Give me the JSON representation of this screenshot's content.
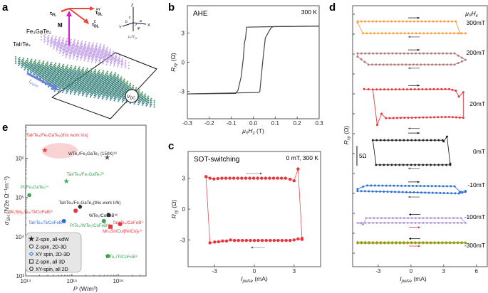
{
  "panel_labels": {
    "a": "a",
    "b": "b",
    "c": "c",
    "d": "d",
    "e": "e"
  },
  "panel_a": {
    "layer_top": "Fe₃GaTe₂",
    "layer_bottom": "TaIrTe₄",
    "magnetization": "M",
    "torque_fl": "τ",
    "torque_fl_sub": "FL",
    "torque_dl_xy": "τ",
    "torque_dl_xy_sub": "DL",
    "torque_dl_xy_sup": "XY",
    "torque_dl_z": "τ",
    "torque_dl_z_sub": "DL",
    "torque_dl_z_sup": "Z",
    "current": "I",
    "current_sub": "Pulse",
    "voltmeter": "V",
    "voltmeter_sub": "DC",
    "axes": {
      "z": "Z",
      "x": "X",
      "y": "Y",
      "a": "a",
      "b": "b",
      "c": "c",
      "phi": "φ",
      "field": "μ₀H",
      "field_sub": "xy"
    },
    "colors": {
      "top_layer": "#b48be0",
      "bottom_layer": "#3f8a5a",
      "torque": "#e8483a",
      "magnetization": "#d020c8",
      "current": "#6e80e8"
    }
  },
  "chart_data": [
    {
      "id": "b",
      "type": "line",
      "title": "AHE",
      "annotation": "300 K",
      "xlabel": "μ₀H",
      "xlabel_sub": "z",
      "xunit": " (T)",
      "ylabel": "R",
      "ylabel_sub": "xy",
      "yunit": " (Ω)",
      "xlim": [
        -0.3,
        0.3
      ],
      "ylim": [
        -5.8,
        5.8
      ],
      "xticks": [
        -0.3,
        -0.2,
        -0.1,
        0.0,
        0.1,
        0.2,
        0.3
      ],
      "xtick_labels": [
        "-0.3",
        "-0.2",
        "-0.1",
        "0.0",
        "0.1",
        "0.2",
        "0.3"
      ],
      "yticks": [
        -3,
        0,
        3
      ],
      "ytick_labels": [
        "-3",
        "0",
        "3"
      ],
      "color": "#444444",
      "series": [
        {
          "points": [
            [
              -0.3,
              -3.25
            ],
            [
              -0.08,
              -3.2
            ],
            [
              -0.07,
              -2.9
            ],
            [
              -0.055,
              -1.5
            ],
            [
              -0.045,
              0.5
            ],
            [
              -0.04,
              2.0
            ],
            [
              -0.035,
              2.5
            ],
            [
              -0.03,
              3.6
            ],
            [
              0.08,
              3.65
            ],
            [
              0.3,
              3.7
            ]
          ]
        },
        {
          "points": [
            [
              0.3,
              3.7
            ],
            [
              0.09,
              3.65
            ],
            [
              0.08,
              3.5
            ],
            [
              0.055,
              2.5
            ],
            [
              0.045,
              0.5
            ],
            [
              0.035,
              -1.8
            ],
            [
              0.03,
              -3.0
            ],
            [
              0.025,
              -3.1
            ],
            [
              -0.3,
              -3.25
            ]
          ]
        }
      ]
    },
    {
      "id": "c",
      "type": "line",
      "title": "SOT-switching",
      "annotation": "0 mT, 300 K",
      "xlabel": "I",
      "xlabel_sub": "pulse",
      "xunit": " (mA)",
      "ylabel": "R",
      "ylabel_sub": "xy",
      "yunit": " (Ω)",
      "xlim": [
        -5,
        5
      ],
      "ylim": [
        -5.6,
        5.6
      ],
      "xticks": [
        -3,
        0,
        3
      ],
      "xtick_labels": [
        "-3",
        "0",
        "3"
      ],
      "yticks": [
        -3,
        0,
        3
      ],
      "ytick_labels": [
        "-3",
        "0",
        "3"
      ],
      "color": "#e8343a",
      "series": [
        {
          "direction": "forward",
          "points": [
            [
              -3.65,
              3.15
            ],
            [
              -3.35,
              3.0
            ],
            [
              -3.05,
              2.93
            ],
            [
              -2.75,
              2.97
            ],
            [
              -2.45,
              3.0
            ],
            [
              -2.15,
              3.0
            ],
            [
              -1.85,
              3.0
            ],
            [
              -1.55,
              3.0
            ],
            [
              -1.25,
              3.0
            ],
            [
              -0.95,
              3.0
            ],
            [
              -0.65,
              3.0
            ],
            [
              -0.35,
              3.0
            ],
            [
              -0.05,
              3.0
            ],
            [
              0.25,
              3.0
            ],
            [
              0.55,
              3.0
            ],
            [
              0.85,
              3.0
            ],
            [
              1.15,
              3.0
            ],
            [
              1.45,
              3.0
            ],
            [
              1.75,
              3.0
            ],
            [
              2.05,
              3.0
            ],
            [
              2.35,
              3.0
            ],
            [
              2.7,
              2.9
            ],
            [
              3.0,
              2.75
            ],
            [
              3.3,
              3.9
            ],
            [
              3.6,
              -2.85
            ]
          ]
        },
        {
          "direction": "backward",
          "points": [
            [
              3.6,
              -2.95
            ],
            [
              3.3,
              -2.9
            ],
            [
              3.0,
              -3.0
            ],
            [
              2.7,
              -3.05
            ],
            [
              2.4,
              -3.05
            ],
            [
              2.1,
              -3.05
            ],
            [
              1.8,
              -3.05
            ],
            [
              1.5,
              -3.05
            ],
            [
              1.2,
              -3.05
            ],
            [
              0.9,
              -3.05
            ],
            [
              0.6,
              -3.05
            ],
            [
              0.3,
              -3.05
            ],
            [
              0.0,
              -3.05
            ],
            [
              -0.3,
              -3.05
            ],
            [
              -0.6,
              -3.05
            ],
            [
              -0.9,
              -3.05
            ],
            [
              -1.2,
              -3.05
            ],
            [
              -1.5,
              -3.05
            ],
            [
              -1.8,
              -3.0
            ],
            [
              -2.1,
              -3.1
            ],
            [
              -2.4,
              -3.1
            ],
            [
              -2.7,
              -3.18
            ],
            [
              -3.0,
              -3.2
            ],
            [
              -3.35,
              -3.28
            ],
            [
              -3.65,
              3.15
            ]
          ]
        }
      ]
    },
    {
      "id": "d",
      "type": "line",
      "legend_title": "μ₀H",
      "legend_title_sub": "x",
      "xlabel": "I",
      "xlabel_sub": "pulse",
      "xunit": " (mA)",
      "ylabel": "R",
      "ylabel_sub": "xy",
      "yunit": " (Ω)",
      "xlim": [
        -5.35,
        7.0
      ],
      "xticks": [
        -3,
        0,
        3,
        6
      ],
      "xtick_labels": [
        "-3",
        "0",
        "3",
        "6"
      ],
      "scale_bar": "5Ω",
      "scale_bar_ohm": 5,
      "series": [
        {
          "name": "300mT",
          "color": "#f5a043",
          "reversed": false,
          "points": [
            [
              -4.9,
              1.5
            ],
            [
              4.1,
              1.5
            ],
            [
              4.5,
              -1.5
            ],
            [
              5.0,
              -1.5
            ],
            [
              -4.4,
              -1.5
            ],
            [
              -4.9,
              1.2
            ],
            [
              -4.9,
              1.5
            ]
          ]
        },
        {
          "name": "200mT",
          "color": "#b57b80",
          "reversed": false,
          "points": [
            [
              -4.9,
              1.4
            ],
            [
              4.0,
              1.4
            ],
            [
              5.0,
              -0.2
            ],
            [
              4.0,
              -1.4
            ],
            [
              -3.9,
              -1.4
            ],
            [
              -4.9,
              0.6
            ],
            [
              -4.9,
              1.4
            ]
          ]
        },
        {
          "name": "20mT",
          "color": "#e8343a",
          "reversed": false,
          "points": [
            [
              -4.3,
              3.7
            ],
            [
              -3.5,
              3.6
            ],
            [
              3.5,
              3.7
            ],
            [
              4.1,
              3.3
            ],
            [
              4.4,
              1.8
            ],
            [
              4.8,
              2.9
            ],
            [
              4.8,
              -3.5
            ],
            [
              3.5,
              -3.3
            ],
            [
              -2.3,
              -3.6
            ],
            [
              -2.7,
              -2.5
            ],
            [
              -3.1,
              -5.3
            ],
            [
              -3.5,
              3.6
            ]
          ]
        },
        {
          "name": "0mT",
          "color": "#222222",
          "reversed": false,
          "points": [
            [
              -3.5,
              3.1
            ],
            [
              2.9,
              3.1
            ],
            [
              3.0,
              2.8
            ],
            [
              3.3,
              4.0
            ],
            [
              3.6,
              -2.8
            ],
            [
              3.6,
              -3.1
            ],
            [
              -3.2,
              -3.1
            ],
            [
              -3.5,
              3.1
            ]
          ]
        },
        {
          "name": "-10mT",
          "color": "#2a6fdb",
          "reversed": false,
          "points": [
            [
              -4.9,
              0.2
            ],
            [
              -4.4,
              0.8
            ],
            [
              -4.0,
              1.1
            ],
            [
              4.0,
              0.9
            ],
            [
              4.5,
              -0.5
            ],
            [
              5.0,
              -0.3
            ],
            [
              5.0,
              -0.5
            ],
            [
              4.4,
              -0.9
            ],
            [
              -4.9,
              -0.3
            ],
            [
              -4.9,
              0.2
            ]
          ]
        },
        {
          "name": "-100mT",
          "color": "#b79be0",
          "reversed": true,
          "points": [
            [
              -4.9,
              -0.6
            ],
            [
              -4.4,
              -1.0
            ],
            [
              -4.1,
              0.6
            ],
            [
              4.6,
              0.6
            ],
            [
              5.0,
              -0.6
            ],
            [
              -4.9,
              -0.6
            ]
          ]
        },
        {
          "name": "-300mT",
          "color": "#9a9a10",
          "reversed": true,
          "points": [
            [
              -4.9,
              0.15
            ],
            [
              5.0,
              0.1
            ],
            [
              5.0,
              -0.05
            ],
            [
              -4.9,
              -0.1
            ],
            [
              -4.9,
              0.15
            ]
          ]
        }
      ]
    },
    {
      "id": "e",
      "type": "scatter",
      "xlabel": "P",
      "xunit": " (W/m³)",
      "ylabel": "σ",
      "ylabel_sub": "SH",
      "yunit": " (ħ/2e Ω⁻¹m⁻¹)",
      "xscale": "log",
      "yscale": "log",
      "xlim": [
        100000000000000.0,
        4e+16
      ],
      "ylim": [
        1000.0,
        7000000.0
      ],
      "xticks": [
        100000000000000.0,
        1000000000000000.0,
        1e+16
      ],
      "xtick_labels": [
        "10¹⁴",
        "10¹⁵",
        "10¹⁶"
      ],
      "yticks": [
        1000.0,
        10000.0,
        100000.0,
        1000000.0
      ],
      "ytick_labels": [
        "10³",
        "10⁴",
        "10⁵",
        "10⁶"
      ],
      "highlight": "this work I//a region",
      "points": [
        {
          "label": "TaIrTe₄/Fe₃GaTe₂(this work I//a)",
          "x": 260000000000000.0,
          "y": 1600000.0,
          "marker": "star",
          "color": "#e8343a"
        },
        {
          "label": "WTe₂/Fe₃GaTe₂ (150K)¹⁶",
          "x": 5800000000000000.0,
          "y": 1050000.0,
          "marker": "star",
          "color": "#555555"
        },
        {
          "label": "TaIrTe₄/Fe₃GaTe₂²⁰",
          "x": 760000000000000.0,
          "y": 260000.0,
          "marker": "star",
          "color": "#3aa655"
        },
        {
          "label": "Pt/Fe₃GaTe₂³⁴",
          "x": 120000000000000.0,
          "y": 115000.0,
          "marker": "hexagon",
          "color": "#3aa655"
        },
        {
          "label": "TaIrTe₄/Fe₃GaTe₂(this work I//b)",
          "x": 1500000000000000.0,
          "y": 58000.0,
          "marker": "hexagon",
          "color": "#333333"
        },
        {
          "label": "(Bi,Sb)₂Te₃/Ti/CoFeB³¹",
          "x": 1200000000000000.0,
          "y": 46000.0,
          "marker": "circle",
          "color": "#e8343a"
        },
        {
          "label": "WTe₂/CoFeB³⁶",
          "x": 6200000000000000.0,
          "y": 36000.0,
          "marker": "circle",
          "color": "#333333"
        },
        {
          "label": "TaIrTe₄/Ti/CoFeB⁸",
          "x": 670000000000000.0,
          "y": 25000.0,
          "marker": "circle",
          "color": "#2a6fdb"
        },
        {
          "label": "PtTe₂/WTe₂/CoFeB³⁸",
          "x": 4900000000000000.0,
          "y": 25000.0,
          "marker": "circle",
          "color": "#3aa655"
        },
        {
          "label": "TaIrTe₄/CoFeB⁹",
          "x": 1.1e+16,
          "y": 21000.0,
          "marker": "circle",
          "color": "#e8343a"
        },
        {
          "label": "Mn₃Sn/Cu/[Ni/Co]₅³⁷",
          "x": 6800000000000000.0,
          "y": 18000.0,
          "marker": "square",
          "color": "#e8343a"
        },
        {
          "label": "WTe₂/Ti/CoFeB⁸",
          "x": 6000000000000000.0,
          "y": 3200.0,
          "marker": "circle",
          "color": "#3aa655"
        }
      ],
      "legend": [
        {
          "marker": "star",
          "label": "Z-spin, all-vdW"
        },
        {
          "marker": "circle",
          "label": "Z-spin, 2D-3D"
        },
        {
          "marker": "diamond",
          "label": "XY spin, 2D-3D"
        },
        {
          "marker": "square",
          "label": "Z-spin, all 3D"
        },
        {
          "marker": "hexagon",
          "label": "XY-spin, all 2D"
        }
      ]
    }
  ]
}
